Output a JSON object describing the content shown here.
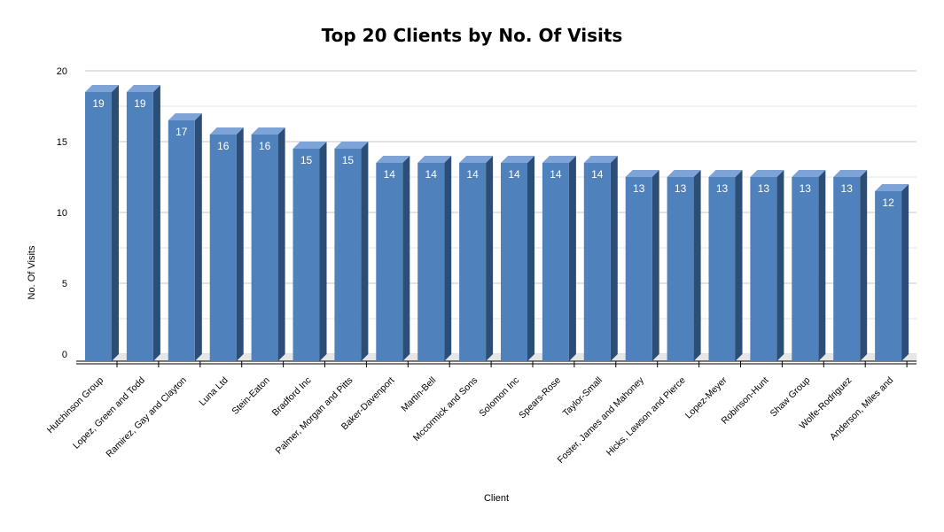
{
  "chart_data": {
    "type": "bar",
    "title": "Top 20 Clients by No. Of Visits",
    "xlabel": "Client",
    "ylabel": "No. Of Visits",
    "ylim": [
      0,
      20
    ],
    "yticks": [
      0,
      5,
      10,
      15,
      20
    ],
    "grid": true,
    "legend": "none",
    "bar_color": "#4f81bd",
    "categories": [
      "Hutchinson Group",
      "Lopez, Green and Todd",
      "Ramirez, Gay and Clayton",
      "Luna Ltd",
      "Stein-Eaton",
      "Bradford Inc",
      "Palmer, Morgan and Pitts",
      "Baker-Davenport",
      "Martin-Bell",
      "Mccormick and Sons",
      "Solomon Inc",
      "Spears-Rose",
      "Taylor-Small",
      "Foster, James and Mahoney",
      "Hicks, Lawson and Pierce",
      "Lopez-Meyer",
      "Robinson-Hunt",
      "Shaw Group",
      "Wolfe-Rodriguez",
      "Anderson, Miles and"
    ],
    "values": [
      19,
      19,
      17,
      16,
      16,
      15,
      15,
      14,
      14,
      14,
      14,
      14,
      14,
      13,
      13,
      13,
      13,
      13,
      13,
      12
    ]
  }
}
